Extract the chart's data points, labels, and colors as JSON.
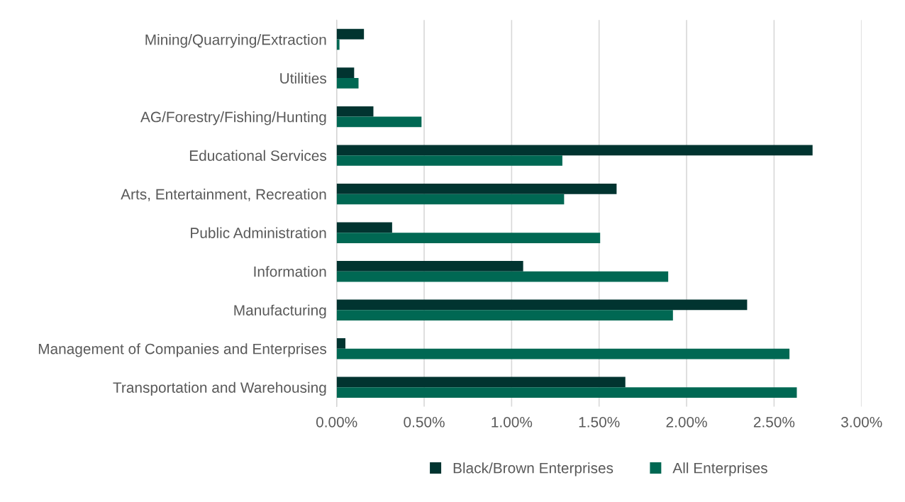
{
  "chart_data": {
    "type": "bar",
    "orientation": "horizontal",
    "categories": [
      "Mining/Quarrying/Extraction",
      "Utilities",
      "AG/Forestry/Fishing/Hunting",
      "Educational Services",
      "Arts, Entertainment, Recreation",
      "Public Administration",
      "Information",
      "Manufacturing",
      "Management of Companies and Enterprises",
      "Transportation and Warehousing"
    ],
    "series": [
      {
        "name": "Black/Brown Enterprises",
        "color": "#013430",
        "values": [
          0.156,
          0.1,
          0.21,
          2.72,
          1.6,
          0.317,
          1.066,
          2.346,
          0.05,
          1.65
        ]
      },
      {
        "name": "All Enterprises",
        "color": "#006853",
        "values": [
          0.016,
          0.125,
          0.485,
          1.29,
          1.3,
          1.506,
          1.895,
          1.922,
          2.588,
          2.63
        ]
      }
    ],
    "xlim": [
      0,
      3.0
    ],
    "xticks": [
      {
        "value": 0,
        "label": "0.00%"
      },
      {
        "value": 0.5,
        "label": "0.50%"
      },
      {
        "value": 1.0,
        "label": "1.00%"
      },
      {
        "value": 1.5,
        "label": "1.50%"
      },
      {
        "value": 2.0,
        "label": "2.00%"
      },
      {
        "value": 2.5,
        "label": "2.50%"
      },
      {
        "value": 3.0,
        "label": "3.00%"
      }
    ],
    "grid": "x",
    "legend": "bottom"
  }
}
